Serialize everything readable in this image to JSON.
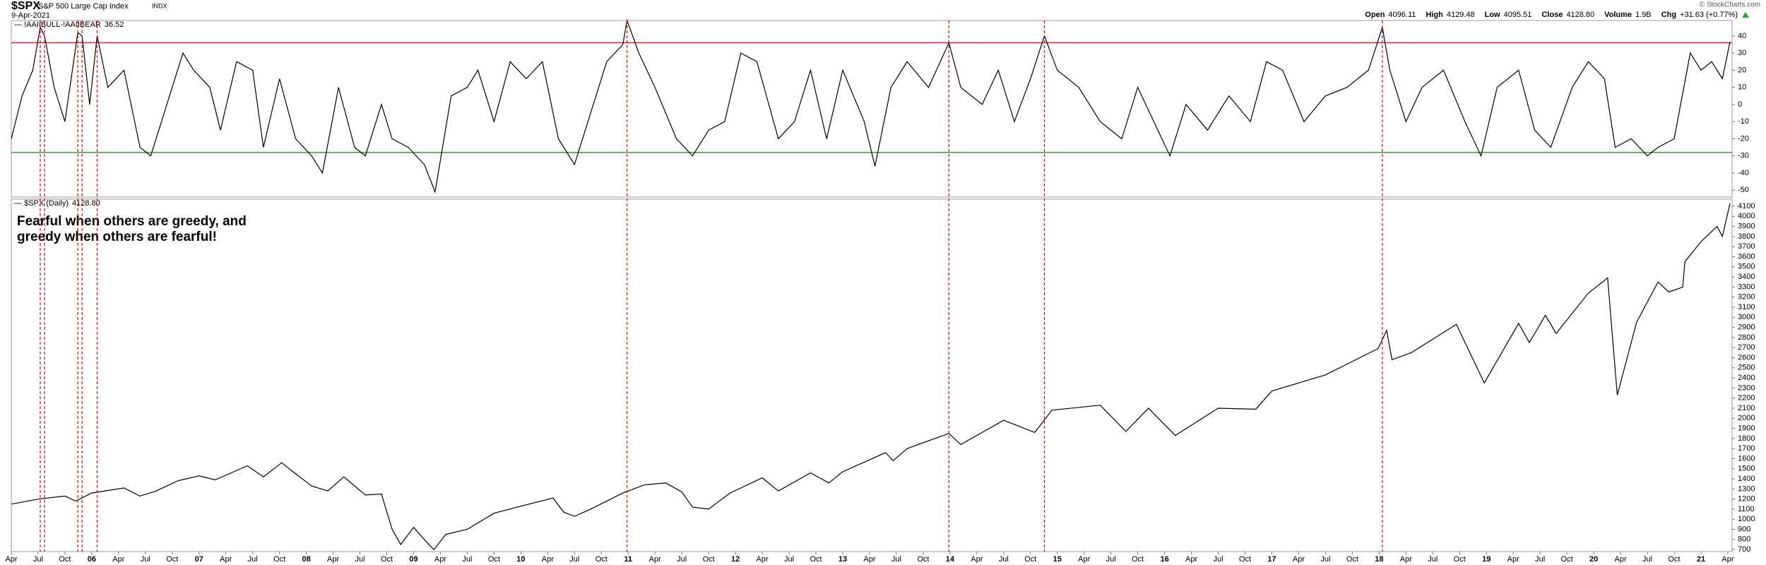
{
  "header": {
    "symbol": "$SPX",
    "name": "S&P 500 Large Cap Index",
    "exchange": "INDX",
    "date": "9-Apr-2021",
    "copyright": "© StockCharts.com",
    "stats": [
      {
        "label": "Open",
        "value": "4096.11"
      },
      {
        "label": "High",
        "value": "4129.48"
      },
      {
        "label": "Low",
        "value": "4095.51"
      },
      {
        "label": "Close",
        "value": "4128.80"
      },
      {
        "label": "Volume",
        "value": "1.9B"
      },
      {
        "label": "Chg",
        "value": "+31.63 (+0.77%)"
      }
    ]
  },
  "markers": {
    "color": "#e00000",
    "vlines": [
      2005.52,
      2005.56,
      2005.87,
      2005.91,
      2006.05,
      2010.99,
      2013.99,
      2014.88,
      2018.03
    ]
  },
  "chart_data": [
    {
      "type": "line",
      "xlim": [
        2005.25,
        2021.29
      ],
      "ylim": [
        -54,
        49
      ],
      "yticks": [
        -50,
        -40,
        -30,
        -20,
        -10,
        0,
        10,
        20,
        30,
        40
      ],
      "hlines": [
        {
          "value": 36,
          "color": "#d62728"
        },
        {
          "value": -28,
          "color": "#2ca02c"
        }
      ],
      "x": [
        2005.25,
        2005.35,
        2005.45,
        2005.52,
        2005.56,
        2005.65,
        2005.75,
        2005.87,
        2005.91,
        2005.98,
        2006.05,
        2006.15,
        2006.3,
        2006.45,
        2006.55,
        2006.7,
        2006.85,
        2006.95,
        2007.1,
        2007.2,
        2007.35,
        2007.5,
        2007.6,
        2007.75,
        2007.9,
        2008.05,
        2008.15,
        2008.3,
        2008.45,
        2008.55,
        2008.7,
        2008.8,
        2008.95,
        2009.1,
        2009.2,
        2009.35,
        2009.5,
        2009.6,
        2009.75,
        2009.9,
        2010.05,
        2010.2,
        2010.35,
        2010.5,
        2010.65,
        2010.8,
        2010.95,
        2010.99,
        2011.1,
        2011.25,
        2011.45,
        2011.6,
        2011.75,
        2011.9,
        2012.05,
        2012.2,
        2012.4,
        2012.55,
        2012.7,
        2012.85,
        2013.0,
        2013.2,
        2013.3,
        2013.45,
        2013.6,
        2013.8,
        2013.99,
        2014.1,
        2014.3,
        2014.45,
        2014.6,
        2014.75,
        2014.88,
        2015.0,
        2015.2,
        2015.4,
        2015.6,
        2015.75,
        2015.9,
        2016.05,
        2016.2,
        2016.4,
        2016.6,
        2016.8,
        2016.95,
        2017.1,
        2017.3,
        2017.5,
        2017.7,
        2017.9,
        2018.03,
        2018.1,
        2018.25,
        2018.4,
        2018.6,
        2018.8,
        2018.95,
        2019.1,
        2019.3,
        2019.45,
        2019.6,
        2019.8,
        2019.95,
        2020.1,
        2020.2,
        2020.35,
        2020.5,
        2020.6,
        2020.75,
        2020.9,
        2021.0,
        2021.1,
        2021.2,
        2021.27
      ],
      "series": [
        {
          "name": "!AAIIBULL-!AAIIBEAR",
          "color": "#000000",
          "values": [
            -20,
            5,
            20,
            45,
            40,
            10,
            -10,
            42,
            40,
            0,
            40,
            10,
            20,
            -25,
            -30,
            0,
            30,
            20,
            10,
            -15,
            25,
            20,
            -25,
            15,
            -20,
            -30,
            -40,
            10,
            -25,
            -30,
            0,
            -20,
            -25,
            -35,
            -51,
            5,
            10,
            20,
            -10,
            25,
            15,
            25,
            -20,
            -35,
            -5,
            25,
            35,
            49,
            30,
            10,
            -20,
            -30,
            -15,
            -10,
            30,
            25,
            -20,
            -10,
            20,
            -20,
            20,
            -10,
            -36,
            10,
            25,
            10,
            36,
            10,
            0,
            20,
            -10,
            15,
            40,
            20,
            10,
            -10,
            -20,
            10,
            -10,
            -30,
            0,
            -15,
            5,
            -10,
            25,
            20,
            -10,
            5,
            10,
            20,
            45,
            20,
            -10,
            10,
            20,
            -10,
            -30,
            10,
            20,
            -15,
            -25,
            10,
            25,
            15,
            -25,
            -20,
            -30,
            -25,
            -20,
            30,
            20,
            25,
            15,
            36.52
          ]
        }
      ]
    },
    {
      "type": "line",
      "xlim": [
        2005.25,
        2021.29
      ],
      "ylim": [
        680,
        4170
      ],
      "annotations": [
        "Fearful when others are greedy, and",
        "greedy when others are fearful!"
      ],
      "annotation_color": "#0000cc",
      "legend_value": "4128.80",
      "yticks": [
        700,
        800,
        900,
        1000,
        1100,
        1200,
        1300,
        1400,
        1500,
        1600,
        1700,
        1800,
        1900,
        2000,
        2100,
        2200,
        2300,
        2400,
        2500,
        2600,
        2700,
        2800,
        2900,
        3000,
        3100,
        3200,
        3300,
        3400,
        3500,
        3600,
        3700,
        3800,
        3900,
        4000,
        4100
      ],
      "xticks": [
        {
          "value": 2005.25,
          "label": "Apr"
        },
        {
          "value": 2005.5,
          "label": "Jul"
        },
        {
          "value": 2005.75,
          "label": "Oct"
        },
        {
          "value": 2006,
          "label": "06"
        },
        {
          "value": 2006.25,
          "label": "Apr"
        },
        {
          "value": 2006.5,
          "label": "Jul"
        },
        {
          "value": 2006.75,
          "label": "Oct"
        },
        {
          "value": 2007,
          "label": "07"
        },
        {
          "value": 2007.25,
          "label": "Apr"
        },
        {
          "value": 2007.5,
          "label": "Jul"
        },
        {
          "value": 2007.75,
          "label": "Oct"
        },
        {
          "value": 2008,
          "label": "08"
        },
        {
          "value": 2008.25,
          "label": "Apr"
        },
        {
          "value": 2008.5,
          "label": "Jul"
        },
        {
          "value": 2008.75,
          "label": "Oct"
        },
        {
          "value": 2009,
          "label": "09"
        },
        {
          "value": 2009.25,
          "label": "Apr"
        },
        {
          "value": 2009.5,
          "label": "Jul"
        },
        {
          "value": 2009.75,
          "label": "Oct"
        },
        {
          "value": 2010,
          "label": "10"
        },
        {
          "value": 2010.25,
          "label": "Apr"
        },
        {
          "value": 2010.5,
          "label": "Jul"
        },
        {
          "value": 2010.75,
          "label": "Oct"
        },
        {
          "value": 2011,
          "label": "11"
        },
        {
          "value": 2011.25,
          "label": "Apr"
        },
        {
          "value": 2011.5,
          "label": "Jul"
        },
        {
          "value": 2011.75,
          "label": "Oct"
        },
        {
          "value": 2012,
          "label": "12"
        },
        {
          "value": 2012.25,
          "label": "Apr"
        },
        {
          "value": 2012.5,
          "label": "Jul"
        },
        {
          "value": 2012.75,
          "label": "Oct"
        },
        {
          "value": 2013,
          "label": "13"
        },
        {
          "value": 2013.25,
          "label": "Apr"
        },
        {
          "value": 2013.5,
          "label": "Jul"
        },
        {
          "value": 2013.75,
          "label": "Oct"
        },
        {
          "value": 2014,
          "label": "14"
        },
        {
          "value": 2014.25,
          "label": "Apr"
        },
        {
          "value": 2014.5,
          "label": "Jul"
        },
        {
          "value": 2014.75,
          "label": "Oct"
        },
        {
          "value": 2015,
          "label": "15"
        },
        {
          "value": 2015.25,
          "label": "Apr"
        },
        {
          "value": 2015.5,
          "label": "Jul"
        },
        {
          "value": 2015.75,
          "label": "Oct"
        },
        {
          "value": 2016,
          "label": "16"
        },
        {
          "value": 2016.25,
          "label": "Apr"
        },
        {
          "value": 2016.5,
          "label": "Jul"
        },
        {
          "value": 2016.75,
          "label": "Oct"
        },
        {
          "value": 2017,
          "label": "17"
        },
        {
          "value": 2017.25,
          "label": "Apr"
        },
        {
          "value": 2017.5,
          "label": "Jul"
        },
        {
          "value": 2017.75,
          "label": "Oct"
        },
        {
          "value": 2018,
          "label": "18"
        },
        {
          "value": 2018.25,
          "label": "Apr"
        },
        {
          "value": 2018.5,
          "label": "Jul"
        },
        {
          "value": 2018.75,
          "label": "Oct"
        },
        {
          "value": 2019,
          "label": "19"
        },
        {
          "value": 2019.25,
          "label": "Apr"
        },
        {
          "value": 2019.5,
          "label": "Jul"
        },
        {
          "value": 2019.75,
          "label": "Oct"
        },
        {
          "value": 2020,
          "label": "20"
        },
        {
          "value": 2020.25,
          "label": "Apr"
        },
        {
          "value": 2020.5,
          "label": "Jul"
        },
        {
          "value": 2020.75,
          "label": "Oct"
        },
        {
          "value": 2021,
          "label": "21"
        },
        {
          "value": 2021.25,
          "label": "Apr"
        }
      ],
      "x": [
        2005.25,
        2005.5,
        2005.75,
        2005.85,
        2006.0,
        2006.3,
        2006.45,
        2006.6,
        2006.8,
        2007.0,
        2007.15,
        2007.45,
        2007.6,
        2007.77,
        2007.9,
        2008.05,
        2008.2,
        2008.35,
        2008.55,
        2008.7,
        2008.8,
        2008.88,
        2009.0,
        2009.15,
        2009.19,
        2009.3,
        2009.5,
        2009.75,
        2010.0,
        2010.3,
        2010.4,
        2010.5,
        2010.65,
        2010.95,
        2011.15,
        2011.35,
        2011.5,
        2011.6,
        2011.75,
        2011.95,
        2012.25,
        2012.4,
        2012.7,
        2012.87,
        2013.0,
        2013.4,
        2013.47,
        2013.6,
        2013.99,
        2014.1,
        2014.5,
        2014.79,
        2014.95,
        2015.4,
        2015.64,
        2015.85,
        2016.1,
        2016.5,
        2016.85,
        2017.0,
        2017.5,
        2017.99,
        2018.07,
        2018.12,
        2018.3,
        2018.72,
        2018.98,
        2019.3,
        2019.4,
        2019.55,
        2019.65,
        2019.95,
        2020.13,
        2020.22,
        2020.4,
        2020.6,
        2020.7,
        2020.83,
        2020.85,
        2021.0,
        2021.15,
        2021.2,
        2021.27
      ],
      "series": [
        {
          "name": "$SPX (Daily)",
          "color": "#000000",
          "values": [
            1150,
            1200,
            1230,
            1180,
            1260,
            1310,
            1230,
            1280,
            1380,
            1430,
            1390,
            1530,
            1420,
            1560,
            1450,
            1330,
            1280,
            1420,
            1240,
            1250,
            900,
            750,
            920,
            740,
            700,
            850,
            900,
            1060,
            1130,
            1210,
            1070,
            1030,
            1100,
            1260,
            1340,
            1360,
            1270,
            1120,
            1100,
            1260,
            1410,
            1280,
            1460,
            1360,
            1470,
            1660,
            1580,
            1700,
            1850,
            1740,
            1980,
            1860,
            2080,
            2130,
            1870,
            2100,
            1830,
            2100,
            2090,
            2270,
            2430,
            2690,
            2870,
            2580,
            2650,
            2930,
            2350,
            2940,
            2750,
            3020,
            2840,
            3240,
            3390,
            2230,
            2950,
            3350,
            3250,
            3300,
            3550,
            3750,
            3900,
            3800,
            4128.8
          ]
        }
      ]
    }
  ]
}
